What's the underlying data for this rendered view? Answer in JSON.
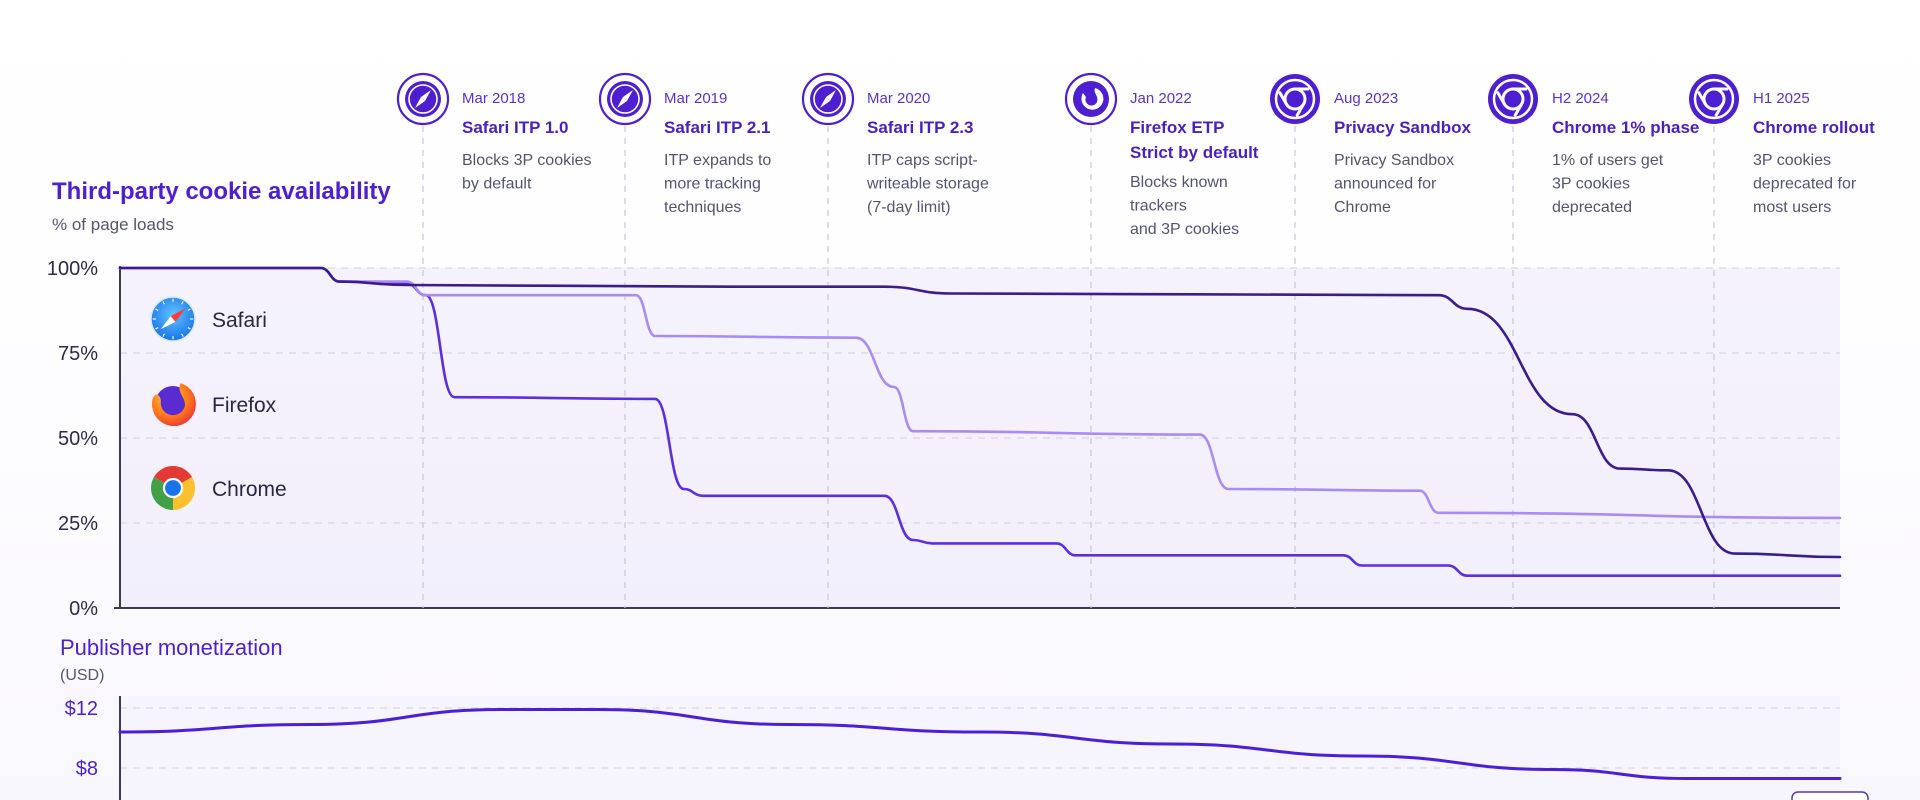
{
  "chart_data": [
    {
      "type": "line",
      "title": "Third-party cookie availability",
      "subtitle": "% of page loads",
      "ylim": [
        0,
        100
      ],
      "y_ticks": [
        0,
        25,
        50,
        75,
        100
      ],
      "y_tick_labels": [
        "0%",
        "25%",
        "50%",
        "75%",
        "100%"
      ],
      "xlim": [
        2016.5,
        2025.5
      ],
      "grid": true,
      "legend_position": "inside-left",
      "series": [
        {
          "name": "Safari",
          "color": "#5b2ee0",
          "points": [
            [
              2016.5,
              100
            ],
            [
              2017.55,
              100
            ],
            [
              2017.65,
              96
            ],
            [
              2018.0,
              95.5
            ],
            [
              2018.1,
              92
            ],
            [
              2018.25,
              62
            ],
            [
              2019.3,
              61.5
            ],
            [
              2019.45,
              35
            ],
            [
              2019.55,
              33
            ],
            [
              2020.5,
              33
            ],
            [
              2020.65,
              20
            ],
            [
              2020.75,
              19
            ],
            [
              2021.4,
              19
            ],
            [
              2021.5,
              15.5
            ],
            [
              2022.9,
              15.5
            ],
            [
              2023.0,
              12.5
            ],
            [
              2023.45,
              12.5
            ],
            [
              2023.55,
              9.5
            ],
            [
              2025.5,
              9.5
            ]
          ]
        },
        {
          "name": "Firefox",
          "color": "#a98cf0",
          "points": [
            [
              2016.5,
              100
            ],
            [
              2017.55,
              100
            ],
            [
              2017.65,
              96
            ],
            [
              2018.0,
              96
            ],
            [
              2018.1,
              92
            ],
            [
              2019.2,
              92
            ],
            [
              2019.3,
              80
            ],
            [
              2020.35,
              79.5
            ],
            [
              2020.55,
              65
            ],
            [
              2020.65,
              52
            ],
            [
              2022.15,
              51
            ],
            [
              2022.3,
              35
            ],
            [
              2023.3,
              34.5
            ],
            [
              2023.4,
              28
            ],
            [
              2025.5,
              26.5
            ]
          ]
        },
        {
          "name": "Chrome",
          "color": "#3a1c8f",
          "points": [
            [
              2016.5,
              100
            ],
            [
              2017.55,
              100
            ],
            [
              2017.65,
              96
            ],
            [
              2018.0,
              95
            ],
            [
              2019.7,
              94.5
            ],
            [
              2020.5,
              94.5
            ],
            [
              2020.85,
              92.5
            ],
            [
              2023.4,
              92
            ],
            [
              2023.55,
              88
            ],
            [
              2024.1,
              57
            ],
            [
              2024.35,
              41
            ],
            [
              2024.6,
              40.5
            ],
            [
              2024.95,
              16
            ],
            [
              2025.5,
              15
            ]
          ]
        }
      ]
    },
    {
      "type": "line",
      "title": "Publisher monetization",
      "subtitle": "(USD)",
      "y_tick_labels": [
        "$12",
        "$8"
      ],
      "grid": true,
      "series": [
        {
          "color": "#4a1fd8",
          "points": [
            [
              2016.5,
              10.4
            ],
            [
              2017.5,
              10.9
            ],
            [
              2018.5,
              11.9
            ],
            [
              2019.0,
              11.9
            ],
            [
              2020.0,
              10.9
            ],
            [
              2021.0,
              10.4
            ],
            [
              2022.0,
              9.6
            ],
            [
              2023.0,
              8.8
            ],
            [
              2024.0,
              7.9
            ],
            [
              2024.7,
              7.3
            ],
            [
              2025.5,
              7.3
            ]
          ]
        }
      ]
    }
  ],
  "timeline": [
    {
      "date": "Mar 2018",
      "title": "Safari ITP 1.0",
      "desc": [
        "Blocks 3P cookies",
        "by default"
      ],
      "icon": "safari-icon"
    },
    {
      "date": "Mar 2019",
      "title": "Safari ITP 2.1",
      "desc": [
        "ITP expands to",
        "more tracking",
        "techniques"
      ],
      "icon": "safari-icon"
    },
    {
      "date": "Mar 2020",
      "title": "Safari ITP 2.3",
      "desc": [
        "ITP caps script-",
        "writeable storage",
        "(7-day limit)"
      ],
      "icon": "safari-icon"
    },
    {
      "date": "Jan 2022",
      "title": "Firefox ETP",
      "title2": "Strict by default",
      "desc": [
        "Blocks known",
        "trackers",
        "and 3P cookies"
      ],
      "icon": "firefox-icon"
    },
    {
      "date": "Aug 2023",
      "title": "Privacy Sandbox",
      "desc": [
        "Privacy Sandbox",
        "announced for",
        "Chrome"
      ],
      "icon": "chrome-icon"
    },
    {
      "date": "H2 2024",
      "title": "Chrome 1% phase",
      "desc": [
        "1% of users get",
        "3P cookies",
        "deprecated"
      ],
      "icon": "chrome-icon"
    },
    {
      "date": "H1 2025",
      "title": "Chrome rollout",
      "desc": [
        "3P cookies",
        "deprecated for",
        "most users"
      ],
      "icon": "chrome-icon"
    }
  ],
  "legend": [
    {
      "label": "Safari",
      "icon": "safari-icon"
    },
    {
      "label": "Firefox",
      "icon": "firefox-icon"
    },
    {
      "label": "Chrome",
      "icon": "chrome-icon"
    }
  ],
  "colors": {
    "accent": "#4d1fd0",
    "grid": "#d9d6e6",
    "axis": "#3a3a55",
    "safari_blue": "#1d8cf0",
    "firefox_orange": "#ff7a1a",
    "chrome_red": "#e53935",
    "chrome_yellow": "#fbc02d",
    "chrome_green": "#43a047"
  }
}
